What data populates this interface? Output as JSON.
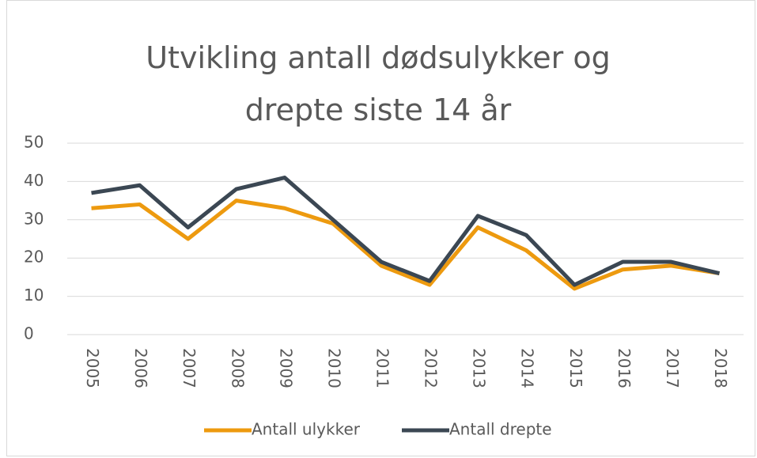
{
  "chart_data": {
    "type": "line",
    "title": "Utvikling antall dødsulykker og drepte siste 14 år",
    "categories": [
      "2005",
      "2006",
      "2007",
      "2008",
      "2009",
      "2010",
      "2011",
      "2012",
      "2013",
      "2014",
      "2015",
      "2016",
      "2017",
      "2018"
    ],
    "series": [
      {
        "name": "Antall ulykker",
        "color": "#ed9a0f",
        "values": [
          33,
          34,
          25,
          35,
          33,
          29,
          18,
          13,
          28,
          22,
          12,
          17,
          18,
          16
        ]
      },
      {
        "name": "Antall drepte",
        "color": "#3b4753",
        "values": [
          37,
          39,
          28,
          38,
          41,
          30,
          19,
          14,
          31,
          26,
          13,
          19,
          19,
          16
        ]
      }
    ],
    "ylim": [
      0,
      50
    ],
    "yticks": [
      0,
      10,
      20,
      30,
      40,
      50
    ],
    "grid": true,
    "legend": "bottom"
  }
}
